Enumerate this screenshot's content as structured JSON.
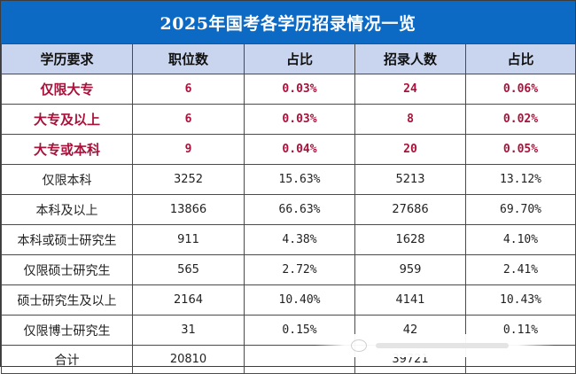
{
  "title": "2025年国考各学历招录情况一览",
  "headers": [
    "学历要求",
    "职位数",
    "占比",
    "招录人数",
    "占比"
  ],
  "rows": [
    {
      "label": "仅限大专",
      "positions": "6",
      "pos_pct": "0.03%",
      "hires": "24",
      "hire_pct": "0.06%"
    },
    {
      "label": "大专及以上",
      "positions": "6",
      "pos_pct": "0.03%",
      "hires": "8",
      "hire_pct": "0.02%"
    },
    {
      "label": "大专或本科",
      "positions": "9",
      "pos_pct": "0.04%",
      "hires": "20",
      "hire_pct": "0.05%"
    },
    {
      "label": "仅限本科",
      "positions": "3252",
      "pos_pct": "15.63%",
      "hires": "5213",
      "hire_pct": "13.12%"
    },
    {
      "label": "本科及以上",
      "positions": "13866",
      "pos_pct": "66.63%",
      "hires": "27686",
      "hire_pct": "69.70%"
    },
    {
      "label": "本科或硕士研究生",
      "positions": "911",
      "pos_pct": "4.38%",
      "hires": "1628",
      "hire_pct": "4.10%"
    },
    {
      "label": "仅限硕士研究生",
      "positions": "565",
      "pos_pct": "2.72%",
      "hires": "959",
      "hire_pct": "2.41%"
    },
    {
      "label": "硕士研究生及以上",
      "positions": "2164",
      "pos_pct": "10.40%",
      "hires": "4141",
      "hire_pct": "10.43%"
    },
    {
      "label": "仅限博士研究生",
      "positions": "31",
      "pos_pct": "0.15%",
      "hires": "42",
      "hire_pct": "0.11%"
    }
  ],
  "total": {
    "label": "合计",
    "positions": "20810",
    "hires": "39721"
  },
  "colors": {
    "title_bg": "#0d6ac4",
    "header_bg": "#c9d4ee",
    "highlight_text": "#a8123a"
  }
}
